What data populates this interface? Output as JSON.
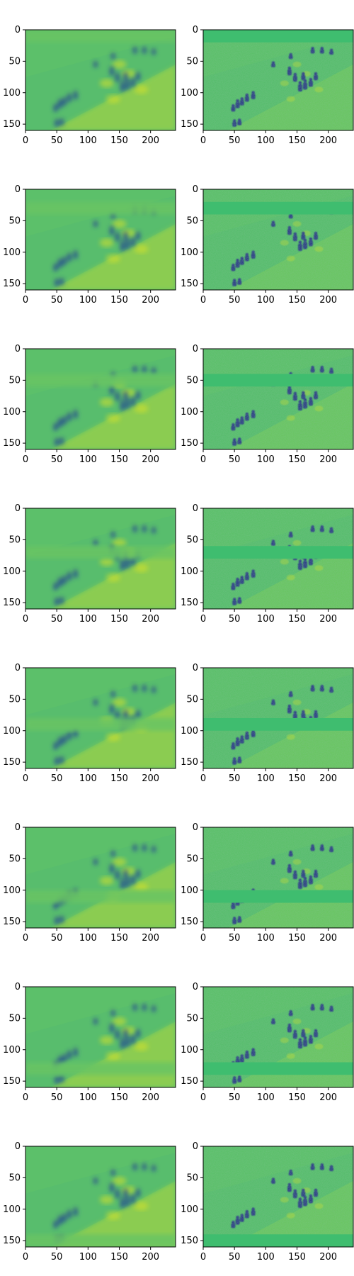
{
  "figure": {
    "rows": 8,
    "columns": 2,
    "colormap": "viridis",
    "colors": {
      "background_green": "#5cc06a",
      "bright_yellow": "#d6e22b",
      "dark_blue": "#2a5a8c",
      "deep_blue": "#2d3f86",
      "band_green": "#3fbd6f"
    },
    "x_ticks": [
      "0",
      "50",
      "100",
      "150",
      "200"
    ],
    "y_ticks": [
      "0",
      "50",
      "100",
      "150"
    ],
    "x_range": [
      0,
      240
    ],
    "y_range": [
      0,
      160
    ],
    "left_panels": "blurred reconstructions",
    "right_panels": "detailed maps with a flat horizontal band",
    "band_rows_start": [
      0,
      20,
      40,
      60,
      80,
      100,
      120,
      140
    ],
    "band_height": 20
  }
}
